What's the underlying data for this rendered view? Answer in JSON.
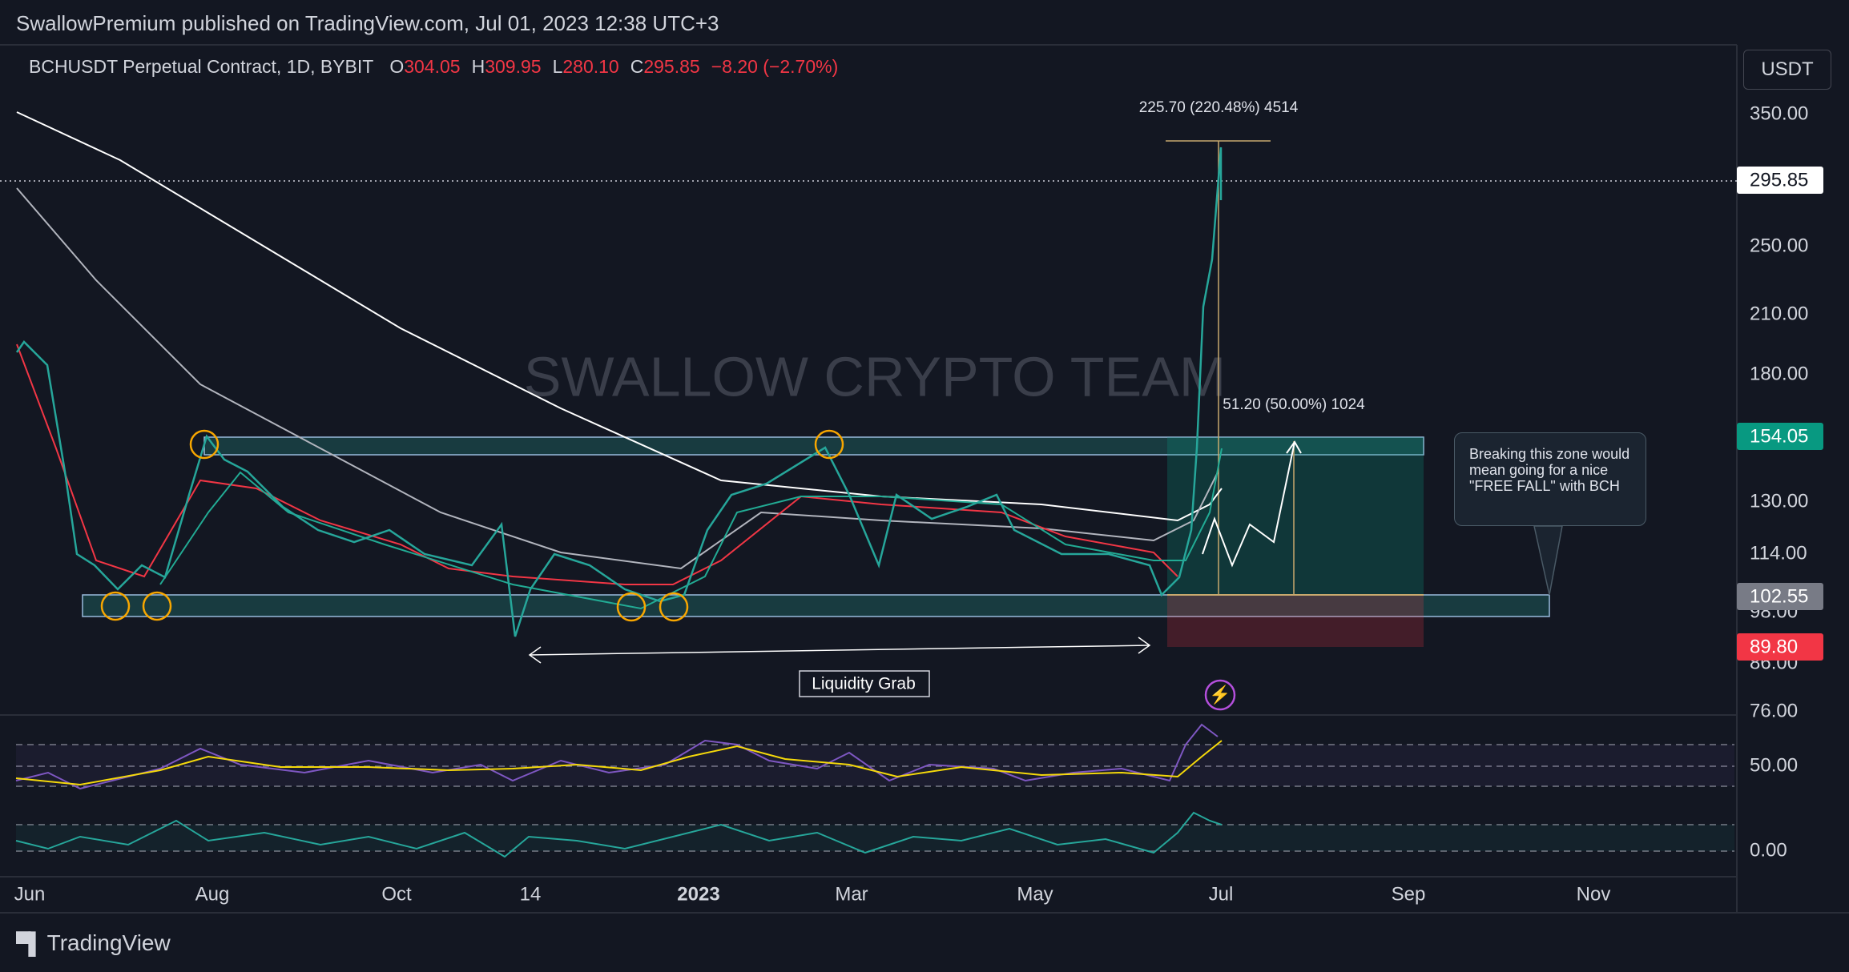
{
  "header": {
    "title": "SwallowPremium published on TradingView.com, Jul 01, 2023 12:38 UTC+3"
  },
  "legend": {
    "symbol": "BCHUSDT Perpetual Contract, 1D, BYBIT",
    "fields": [
      {
        "label": "O",
        "value": "304.05"
      },
      {
        "label": "H",
        "value": "309.95"
      },
      {
        "label": "L",
        "value": "280.10"
      },
      {
        "label": "C",
        "value": "295.85"
      }
    ],
    "change": "−8.20 (−2.70%)"
  },
  "currency": "USDT",
  "watermark": "SWALLOW CRYPTO TEAM",
  "price_axis": [
    "350.00",
    "250.00",
    "210.00",
    "180.00",
    "130.00",
    "114.00",
    "98.00",
    "86.00",
    "76.00"
  ],
  "price_badges": [
    "295.85",
    "154.05",
    "102.55",
    "89.80"
  ],
  "indicator_axis": [
    "50.00",
    "0.00"
  ],
  "time_axis": [
    "Jun",
    "Aug",
    "Oct",
    "14",
    "2023",
    "Mar",
    "May",
    "Jul",
    "Sep",
    "Nov"
  ],
  "annotations": {
    "target": "225.70 (220.48%) 4514",
    "zone": "51.20 (50.00%) 1024",
    "liquidity": "Liquidity Grab",
    "callout": "Breaking this zone would mean going for a nice \"FREE FALL\" with BCH"
  },
  "footer": {
    "brand": "TradingView"
  }
}
